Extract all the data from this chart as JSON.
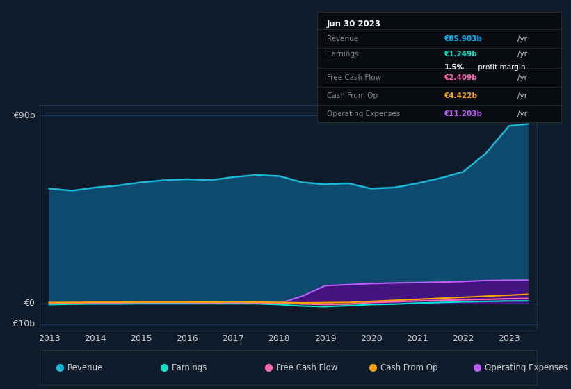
{
  "background_color": "#0d1b2a",
  "plot_bg_color": "#0d1b2a",
  "grid_color": "#1e3a5f",
  "text_color": "#cccccc",
  "title_box": {
    "date": "Jun 30 2023",
    "rows": [
      {
        "label": "Revenue",
        "value": "€85.903b",
        "value_color": "#00bfff"
      },
      {
        "label": "Earnings",
        "value": "€1.249b",
        "value_color": "#00e5cc"
      },
      {
        "label": "",
        "value": "1.5% profit margin",
        "value_color": "#ffffff"
      },
      {
        "label": "Free Cash Flow",
        "value": "€2.409b",
        "value_color": "#ff69b4"
      },
      {
        "label": "Cash From Op",
        "value": "€4.422b",
        "value_color": "#ffa500"
      },
      {
        "label": "Operating Expenses",
        "value": "€11.203b",
        "value_color": "#bf5fff"
      }
    ]
  },
  "years": [
    2013,
    2013.5,
    2014,
    2014.5,
    2015,
    2015.5,
    2016,
    2016.5,
    2017,
    2017.5,
    2018,
    2018.5,
    2019,
    2019.5,
    2020,
    2020.5,
    2021,
    2021.5,
    2022,
    2022.5,
    2023,
    2023.4
  ],
  "revenue": [
    55,
    54,
    55.5,
    56.5,
    58,
    59,
    59.5,
    59,
    60.5,
    61.5,
    61,
    58,
    57,
    57.5,
    55,
    55.5,
    57.5,
    60,
    63,
    72,
    85,
    85.9
  ],
  "earnings": [
    -0.5,
    -0.3,
    -0.2,
    -0.2,
    -0.1,
    -0.1,
    -0.1,
    -0.1,
    -0.1,
    -0.1,
    -0.5,
    -1.2,
    -1.5,
    -1.0,
    -0.5,
    -0.3,
    0.2,
    0.5,
    0.8,
    1.0,
    1.2,
    1.249
  ],
  "free_cash_flow": [
    0.3,
    0.3,
    0.4,
    0.4,
    0.5,
    0.5,
    0.5,
    0.4,
    0.5,
    0.4,
    0.2,
    -0.2,
    -0.5,
    -0.3,
    0.5,
    0.8,
    1.2,
    1.5,
    1.8,
    2.0,
    2.3,
    2.409
  ],
  "cash_from_op": [
    0.5,
    0.5,
    0.6,
    0.6,
    0.7,
    0.7,
    0.7,
    0.7,
    0.8,
    0.7,
    0.5,
    0.3,
    0.4,
    0.5,
    1.0,
    1.5,
    2.0,
    2.5,
    3.0,
    3.5,
    4.0,
    4.422
  ],
  "operating_expenses": [
    0,
    0,
    0,
    0,
    0,
    0,
    0,
    0,
    0,
    0,
    0,
    3.5,
    8.5,
    9.0,
    9.5,
    9.8,
    10.0,
    10.2,
    10.5,
    11.0,
    11.1,
    11.203
  ],
  "ylim": [
    -13,
    95
  ],
  "ytick_labels": [
    "€90b",
    "€0",
    "-€10b"
  ],
  "ytick_values": [
    90,
    0,
    -10
  ],
  "hlines": [
    90,
    0,
    -10
  ],
  "xlim": [
    2012.8,
    2023.6
  ],
  "xticks": [
    2013,
    2014,
    2015,
    2016,
    2017,
    2018,
    2019,
    2020,
    2021,
    2022,
    2023
  ],
  "revenue_color": "#1ab8d4",
  "revenue_fill": "#0d4a6e",
  "earnings_color": "#00e5cc",
  "free_cash_flow_color": "#ff69b4",
  "cash_from_op_color": "#ffa500",
  "operating_expenses_color": "#bf5fff",
  "operating_expenses_fill": "#4a0f80",
  "legend_items": [
    {
      "label": "Revenue",
      "color": "#1ab8d4"
    },
    {
      "label": "Earnings",
      "color": "#00e5cc"
    },
    {
      "label": "Free Cash Flow",
      "color": "#ff69b4"
    },
    {
      "label": "Cash From Op",
      "color": "#ffa500"
    },
    {
      "label": "Operating Expenses",
      "color": "#bf5fff"
    }
  ]
}
